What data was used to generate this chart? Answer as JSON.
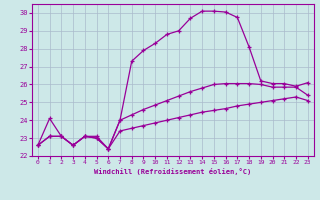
{
  "xlabel": "Windchill (Refroidissement éolien,°C)",
  "background_color": "#cde8e8",
  "line_color": "#990099",
  "xlim": [
    -0.5,
    23.5
  ],
  "ylim": [
    22,
    30.5
  ],
  "yticks": [
    22,
    23,
    24,
    25,
    26,
    27,
    28,
    29,
    30
  ],
  "xticks": [
    0,
    1,
    2,
    3,
    4,
    5,
    6,
    7,
    8,
    9,
    10,
    11,
    12,
    13,
    14,
    15,
    16,
    17,
    18,
    19,
    20,
    21,
    22,
    23
  ],
  "grid_color": "#aabbcc",
  "line_top": [
    22.6,
    24.1,
    23.1,
    22.6,
    23.1,
    23.1,
    22.4,
    24.0,
    27.3,
    27.9,
    28.3,
    28.8,
    29.0,
    29.7,
    30.1,
    30.1,
    30.05,
    29.75,
    28.1,
    26.2,
    26.05,
    26.05,
    25.9,
    26.1
  ],
  "line_mid": [
    22.6,
    23.1,
    23.1,
    22.6,
    23.1,
    23.0,
    22.4,
    24.0,
    24.3,
    24.6,
    24.85,
    25.1,
    25.35,
    25.6,
    25.8,
    26.0,
    26.05,
    26.05,
    26.05,
    26.0,
    25.85,
    25.85,
    25.85,
    25.4
  ],
  "line_bot": [
    22.6,
    23.1,
    23.1,
    22.6,
    23.1,
    23.0,
    22.4,
    23.4,
    23.55,
    23.7,
    23.85,
    24.0,
    24.15,
    24.3,
    24.45,
    24.55,
    24.65,
    24.8,
    24.9,
    25.0,
    25.1,
    25.2,
    25.3,
    25.1
  ]
}
